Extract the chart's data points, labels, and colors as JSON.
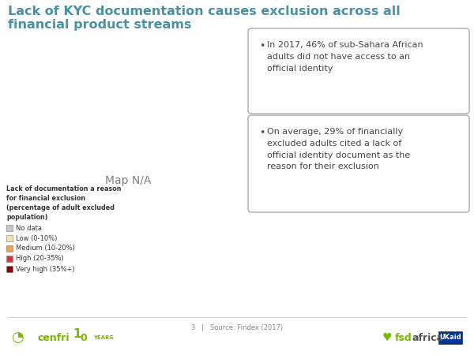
{
  "title_line1": "Lack of KYC documentation causes exclusion across all",
  "title_line2": "financial product streams",
  "title_color": "#4a90a4",
  "background_color": "#ffffff",
  "legend_title": "Lack of documentation a reason\nfor financial exclusion\n(percentage of adult excluded\npopulation)",
  "legend_items": [
    {
      "label": "No data",
      "color": "#c8c8c8"
    },
    {
      "label": "Low (0-10%)",
      "color": "#f5e6a3"
    },
    {
      "label": "Medium (10-20%)",
      "color": "#f0a050"
    },
    {
      "label": "High (20-35%)",
      "color": "#e83030"
    },
    {
      "label": "Very high (35%+)",
      "color": "#8b0000"
    }
  ],
  "bullet1": "In 2017, 46% of sub-Sahara African\nadults did not have access to an\nofficial identity",
  "bullet2": "On average, 29% of financially\nexcluded adults cited a lack of\nofficial identity document as the\nreason for their exclusion",
  "source_text": "3   |   Source: Findex (2017)",
  "africa_color_map": {
    "DZA": "#c8c8c8",
    "LBY": "#c8c8c8",
    "EGY": "#c8c8c8",
    "TUN": "#c8c8c8",
    "MAR": "#c8c8c8",
    "ESH": "#c8c8c8",
    "MRT": "#c8c8c8",
    "MLI": "#8b0000",
    "NER": "#c8c8c8",
    "TCD": "#c8c8c8",
    "SDN": "#c8c8c8",
    "ERI": "#c8c8c8",
    "DJI": "#c8c8c8",
    "SOM": "#c8c8c8",
    "SSD": "#c8c8c8",
    "CAF": "#c8c8c8",
    "GNQ": "#c8c8c8",
    "GAB": "#c8c8c8",
    "COG": "#e83030",
    "AGO": "#e83030",
    "ZMB": "#8b0000",
    "ZWE": "#8b0000",
    "MOZ": "#e83030",
    "MWI": "#8b0000",
    "COM": "#c8c8c8",
    "MDG": "#8b0000",
    "MUS": "#c8c8c8",
    "SYC": "#c8c8c8",
    "STP": "#c8c8c8",
    "CPV": "#c8c8c8",
    "SEN": "#c8c8c8",
    "GHA": "#f5e6a3",
    "TGO": "#e83030",
    "BEN": "#e83030",
    "ETH": "#c8c8c8",
    "KEN": "#e83030",
    "TZA": "#e83030",
    "NAM": "#f0a050",
    "GMB": "#f0a050",
    "GNB": "#f0a050",
    "SLE": "#f0a050",
    "LBR": "#f0a050",
    "CIV": "#f0a050",
    "BFA": "#e83030",
    "CMR": "#e83030",
    "RWA": "#e83030",
    "BDI": "#8b0000",
    "LSO": "#f0a050",
    "SWZ": "#f0a050",
    "GIN": "#8b0000",
    "NGA": "#f0a050",
    "COD": "#8b0000",
    "UGA": "#e83030",
    "BWA": "#f0a050",
    "ZAF": "#e83030",
    "SDS": "#c8c8c8"
  }
}
